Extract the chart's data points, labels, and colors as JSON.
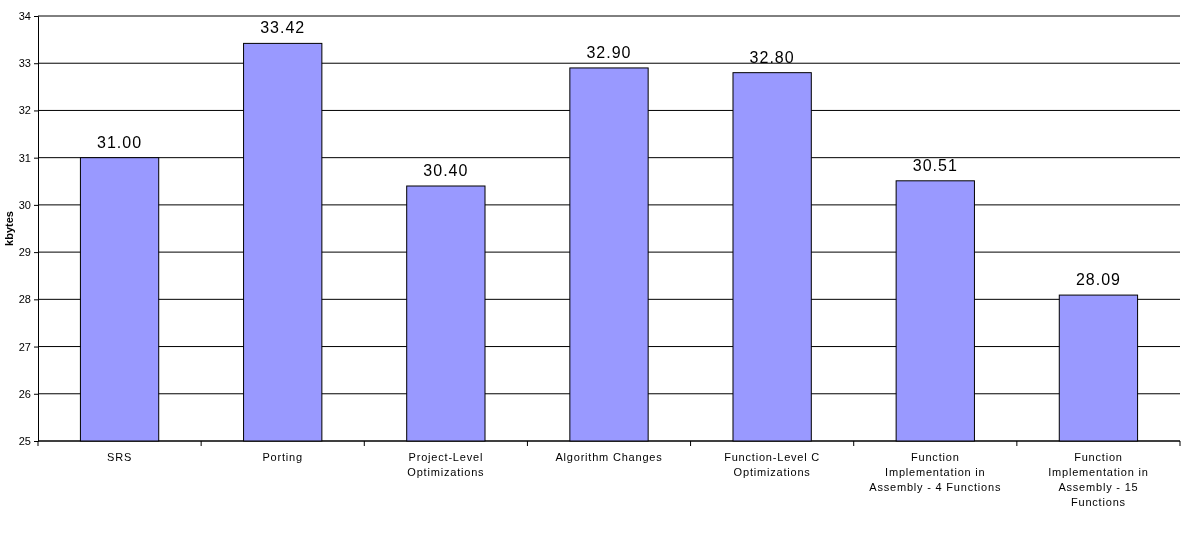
{
  "chart_data": {
    "type": "bar",
    "ylabel": "kbytes",
    "categories": [
      "SRS",
      "Porting",
      "Project-Level Optimizations",
      "Algorithm Changes",
      "Function-Level C Optimizations",
      "Function Implementation in Assembly - 4 Functions",
      "Function Implementation in Assembly - 15 Functions"
    ],
    "values": [
      31.0,
      33.42,
      30.4,
      32.9,
      32.8,
      30.51,
      28.09
    ],
    "color": "#9999ff",
    "ylim": [
      25,
      34
    ],
    "yticks": [
      25,
      26,
      27,
      28,
      29,
      30,
      31,
      32,
      33,
      34
    ],
    "value_labels": [
      "31.00",
      "33.42",
      "30.40",
      "32.90",
      "32.80",
      "30.51",
      "28.09"
    ],
    "grid": "y"
  }
}
